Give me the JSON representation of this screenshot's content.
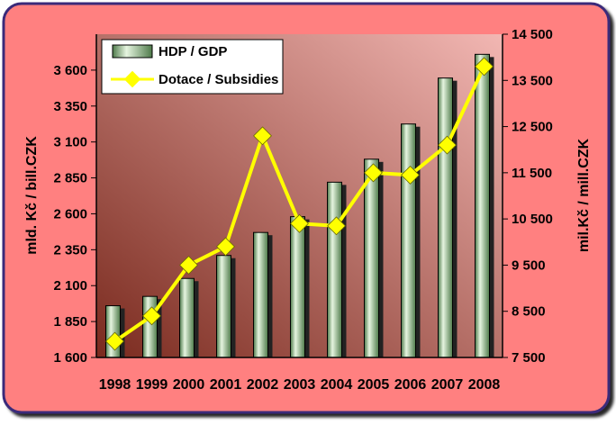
{
  "chart_data": {
    "type": "bar",
    "categories": [
      "1998",
      "1999",
      "2000",
      "2001",
      "2002",
      "2003",
      "2004",
      "2005",
      "2006",
      "2007",
      "2008"
    ],
    "series": [
      {
        "name": "HDP / GDP",
        "type": "bar",
        "axis": "left",
        "values": [
          1960,
          2025,
          2150,
          2310,
          2470,
          2580,
          2820,
          2980,
          3225,
          3545,
          3710
        ]
      },
      {
        "name": "Dotace / Subsidies",
        "type": "line",
        "axis": "right",
        "values": [
          7850,
          8400,
          9500,
          9900,
          12300,
          10400,
          10350,
          11500,
          11450,
          12100,
          13800
        ]
      }
    ],
    "ylabel": "mld. Kč / bill.CZK",
    "y2label": "mil.Kč / mill.CZK",
    "ylim": [
      1600,
      3850
    ],
    "y2lim": [
      7500,
      14500
    ],
    "yticks": [
      1600,
      1850,
      2100,
      2350,
      2600,
      2850,
      3100,
      3350,
      3600
    ],
    "ytick_labels": [
      "1 600",
      "1 850",
      "2 100",
      "2 350",
      "2 600",
      "2 850",
      "3 100",
      "3 350",
      "3 600"
    ],
    "y2ticks": [
      7500,
      8500,
      9500,
      10500,
      11500,
      12500,
      13500,
      14500
    ],
    "y2tick_labels": [
      "7 500",
      "8 500",
      "9 500",
      "10 500",
      "11 500",
      "12 500",
      "13 500",
      "14 500"
    ],
    "grid": false,
    "legend": "top-left",
    "colors": {
      "background": "#FF8080",
      "frame_border": "#3A2A7A",
      "plot_gradient_start": "#7A2A1E",
      "plot_gradient_end": "#F2B7B3",
      "bar_light": "#E6F5E0",
      "bar_dark": "#4E7A4A",
      "bar_shadow": "#222222",
      "line": "#FFFF00",
      "text": "#000000"
    }
  }
}
